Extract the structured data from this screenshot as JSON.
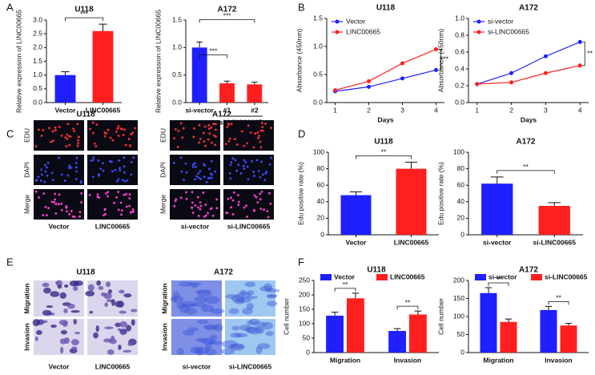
{
  "panel_labels": [
    "A",
    "B",
    "C",
    "D",
    "E",
    "F"
  ],
  "chart_data": [
    {
      "type": "bar",
      "title": "U118",
      "ylabel": "Relative expression of LINC00665",
      "categories": [
        "Vector",
        "LINC00665"
      ],
      "values": [
        1.0,
        2.6
      ],
      "errors": [
        0.12,
        0.25
      ],
      "colors": [
        "#1f1fff",
        "#ff1f1f"
      ],
      "ylim": [
        0,
        3.0
      ],
      "yticks": [
        {
          "value": 0,
          "label": "0.0"
        },
        0.5,
        {
          "value": 1,
          "label": "1.0"
        },
        1.5,
        {
          "value": 2,
          "label": "2.0"
        },
        2.5,
        {
          "value": 3,
          "label": "3.0"
        }
      ],
      "annotations": [
        "***"
      ]
    },
    {
      "type": "bar",
      "title": "A172",
      "ylabel": "Relative expression of LINC00665",
      "categories": [
        "si-vector",
        "#1",
        "#2"
      ],
      "group_label": "si-LINC00665",
      "values": [
        1.0,
        0.35,
        0.33
      ],
      "errors": [
        0.1,
        0.04,
        0.04
      ],
      "colors": [
        "#1f1fff",
        "#ff1f1f",
        "#ff1f1f"
      ],
      "ylim": [
        0,
        1.5
      ],
      "yticks": [
        {
          "value": 0,
          "label": "0.0"
        },
        0.5,
        {
          "value": 1,
          "label": "1.0"
        },
        1.5
      ],
      "annotations": [
        "***",
        "***"
      ]
    },
    {
      "type": "line",
      "title": "U118",
      "ylabel": "Absorbance (450nm)",
      "xlabel": "Days",
      "x": [
        1,
        2,
        3,
        4
      ],
      "xlim": [
        0.75,
        4.25
      ],
      "xticks": [
        1,
        2,
        3,
        4
      ],
      "ylim": [
        0,
        1.5
      ],
      "yticks": [
        {
          "value": 0,
          "label": "0.0"
        },
        0.5,
        {
          "value": 1,
          "label": "1.0"
        },
        1.5
      ],
      "series": [
        {
          "name": "Vector",
          "color": "#1f1fff",
          "values": [
            0.2,
            0.28,
            0.43,
            0.58
          ]
        },
        {
          "name": "LINC00665",
          "color": "#ff1f1f",
          "values": [
            0.22,
            0.38,
            0.7,
            0.95
          ]
        }
      ],
      "annotations": [
        "**"
      ],
      "legend": "top-left"
    },
    {
      "type": "line",
      "title": "A172",
      "ylabel": "Absorbance (450nm)",
      "xlabel": "Days",
      "x": [
        1,
        2,
        3,
        4
      ],
      "xlim": [
        0.75,
        4.25
      ],
      "xticks": [
        1,
        2,
        3,
        4
      ],
      "ylim": [
        0,
        1.0
      ],
      "yticks": [
        {
          "value": 0,
          "label": "0.0"
        },
        0.2,
        0.4,
        0.6,
        0.8,
        {
          "value": 1,
          "label": "1.0"
        }
      ],
      "series": [
        {
          "name": "si-vector",
          "color": "#1f1fff",
          "values": [
            0.22,
            0.35,
            0.55,
            0.72
          ]
        },
        {
          "name": "si-LINC00665",
          "color": "#ff1f1f",
          "values": [
            0.22,
            0.24,
            0.35,
            0.44
          ]
        }
      ],
      "annotations": [
        "**"
      ],
      "legend": "top-left"
    },
    {
      "type": "bar",
      "title": "U118",
      "ylabel": "Edu positive rate (%)",
      "categories": [
        "Vector",
        "LINC00665"
      ],
      "values": [
        48,
        80
      ],
      "errors": [
        4,
        8
      ],
      "colors": [
        "#1f1fff",
        "#ff1f1f"
      ],
      "ylim": [
        0,
        100
      ],
      "yticks": [
        0,
        20,
        40,
        60,
        80,
        100
      ],
      "annotations": [
        "**"
      ]
    },
    {
      "type": "bar",
      "title": "A172",
      "ylabel": "Edu positive rate (%)",
      "categories": [
        "si-vector",
        "si-LINC00665"
      ],
      "values": [
        62,
        35
      ],
      "errors": [
        8,
        4
      ],
      "colors": [
        "#1f1fff",
        "#ff1f1f"
      ],
      "ylim": [
        0,
        100
      ],
      "yticks": [
        0,
        20,
        40,
        60,
        80,
        100
      ],
      "annotations": [
        "**"
      ]
    },
    {
      "type": "group",
      "title": "U118",
      "ylabel": "Cell number",
      "categories": [
        "Migration",
        "Invasion"
      ],
      "ylim": [
        0,
        250
      ],
      "yticks": [
        0,
        50,
        100,
        150,
        200,
        250
      ],
      "series": [
        {
          "name": "Vector",
          "color": "#1f1fff",
          "values": [
            128,
            75
          ],
          "errors": [
            12,
            8
          ]
        },
        {
          "name": "LINC00665",
          "color": "#ff1f1f",
          "values": [
            188,
            132
          ],
          "errors": [
            18,
            12
          ]
        }
      ],
      "annotations": [
        "**",
        "**"
      ],
      "legend": "top"
    },
    {
      "type": "group",
      "title": "A172",
      "ylabel": "Cell number",
      "categories": [
        "Migration",
        "Invasion"
      ],
      "ylim": [
        0,
        200
      ],
      "yticks": [
        0,
        50,
        100,
        150,
        200
      ],
      "series": [
        {
          "name": "si-vector",
          "color": "#1f1fff",
          "values": [
            165,
            118
          ],
          "errors": [
            15,
            10
          ]
        },
        {
          "name": "si-LINC00665",
          "color": "#ff1f1f",
          "values": [
            85,
            75
          ],
          "errors": [
            8,
            6
          ]
        }
      ],
      "annotations": [
        "**",
        "**"
      ],
      "legend": "top"
    }
  ],
  "image_panels": [
    {
      "title": "U118",
      "row_labels": [
        "EDU",
        "DAPI",
        "Merge"
      ],
      "col_labels": [
        "Vector",
        "LINC00665"
      ]
    },
    {
      "title": "A172",
      "row_labels": [
        "EDU",
        "DAPI",
        "Merge"
      ],
      "col_labels": [
        "si-vector",
        "si-LINC00665"
      ]
    },
    {
      "title": "U118",
      "row_labels": [
        "Migration",
        "Invasion"
      ],
      "col_labels": [
        "Vector",
        "LINC00665"
      ]
    },
    {
      "title": "A172",
      "row_labels": [
        "Migration",
        "Invasion"
      ],
      "col_labels": [
        "si-vector",
        "si-LINC00665"
      ]
    }
  ]
}
